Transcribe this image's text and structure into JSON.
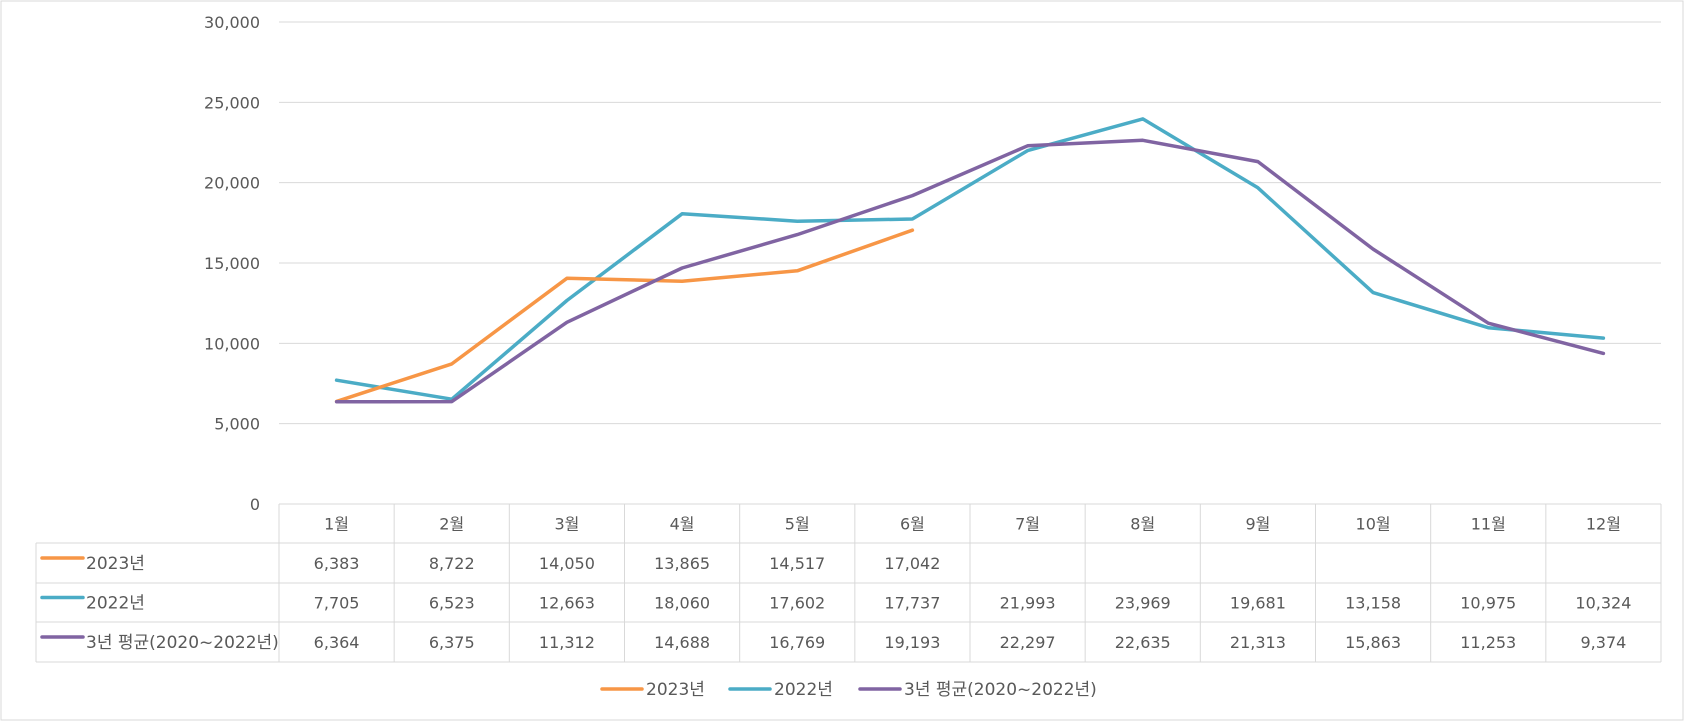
{
  "chart_data": {
    "type": "line",
    "categories": [
      "1월",
      "2월",
      "3월",
      "4월",
      "5월",
      "6월",
      "7월",
      "8월",
      "9월",
      "10월",
      "11월",
      "12월"
    ],
    "series": [
      {
        "name": "2023년",
        "color": "#F79646",
        "values": [
          6383,
          8722,
          14050,
          13865,
          14517,
          17042,
          null,
          null,
          null,
          null,
          null,
          null
        ]
      },
      {
        "name": "2022년",
        "color": "#4BACC6",
        "values": [
          7705,
          6523,
          12663,
          18060,
          17602,
          17737,
          21993,
          23969,
          19681,
          13158,
          10975,
          10324
        ]
      },
      {
        "name": "3년 평균(2020~2022년)",
        "color": "#8064A2",
        "values": [
          6364,
          6375,
          11312,
          14688,
          16769,
          19193,
          22297,
          22635,
          21313,
          15863,
          11253,
          9374
        ]
      }
    ],
    "ylim": [
      0,
      30000
    ],
    "yticks": [
      0,
      5000,
      10000,
      15000,
      20000,
      25000,
      30000
    ],
    "ytick_labels": [
      "0",
      "5,000",
      "10,000",
      "15,000",
      "20,000",
      "25,000",
      "30,000"
    ],
    "table_values": [
      [
        "6,383",
        "8,722",
        "14,050",
        "13,865",
        "14,517",
        "17,042",
        "",
        "",
        "",
        "",
        "",
        ""
      ],
      [
        "7,705",
        "6,523",
        "12,663",
        "18,060",
        "17,602",
        "17,737",
        "21,993",
        "23,969",
        "19,681",
        "13,158",
        "10,975",
        "10,324"
      ],
      [
        "6,364",
        "6,375",
        "11,312",
        "14,688",
        "16,769",
        "19,193",
        "22,297",
        "22,635",
        "21,313",
        "15,863",
        "11,253",
        "9,374"
      ]
    ],
    "grid": true,
    "legend": "bottom",
    "data_table": true
  }
}
